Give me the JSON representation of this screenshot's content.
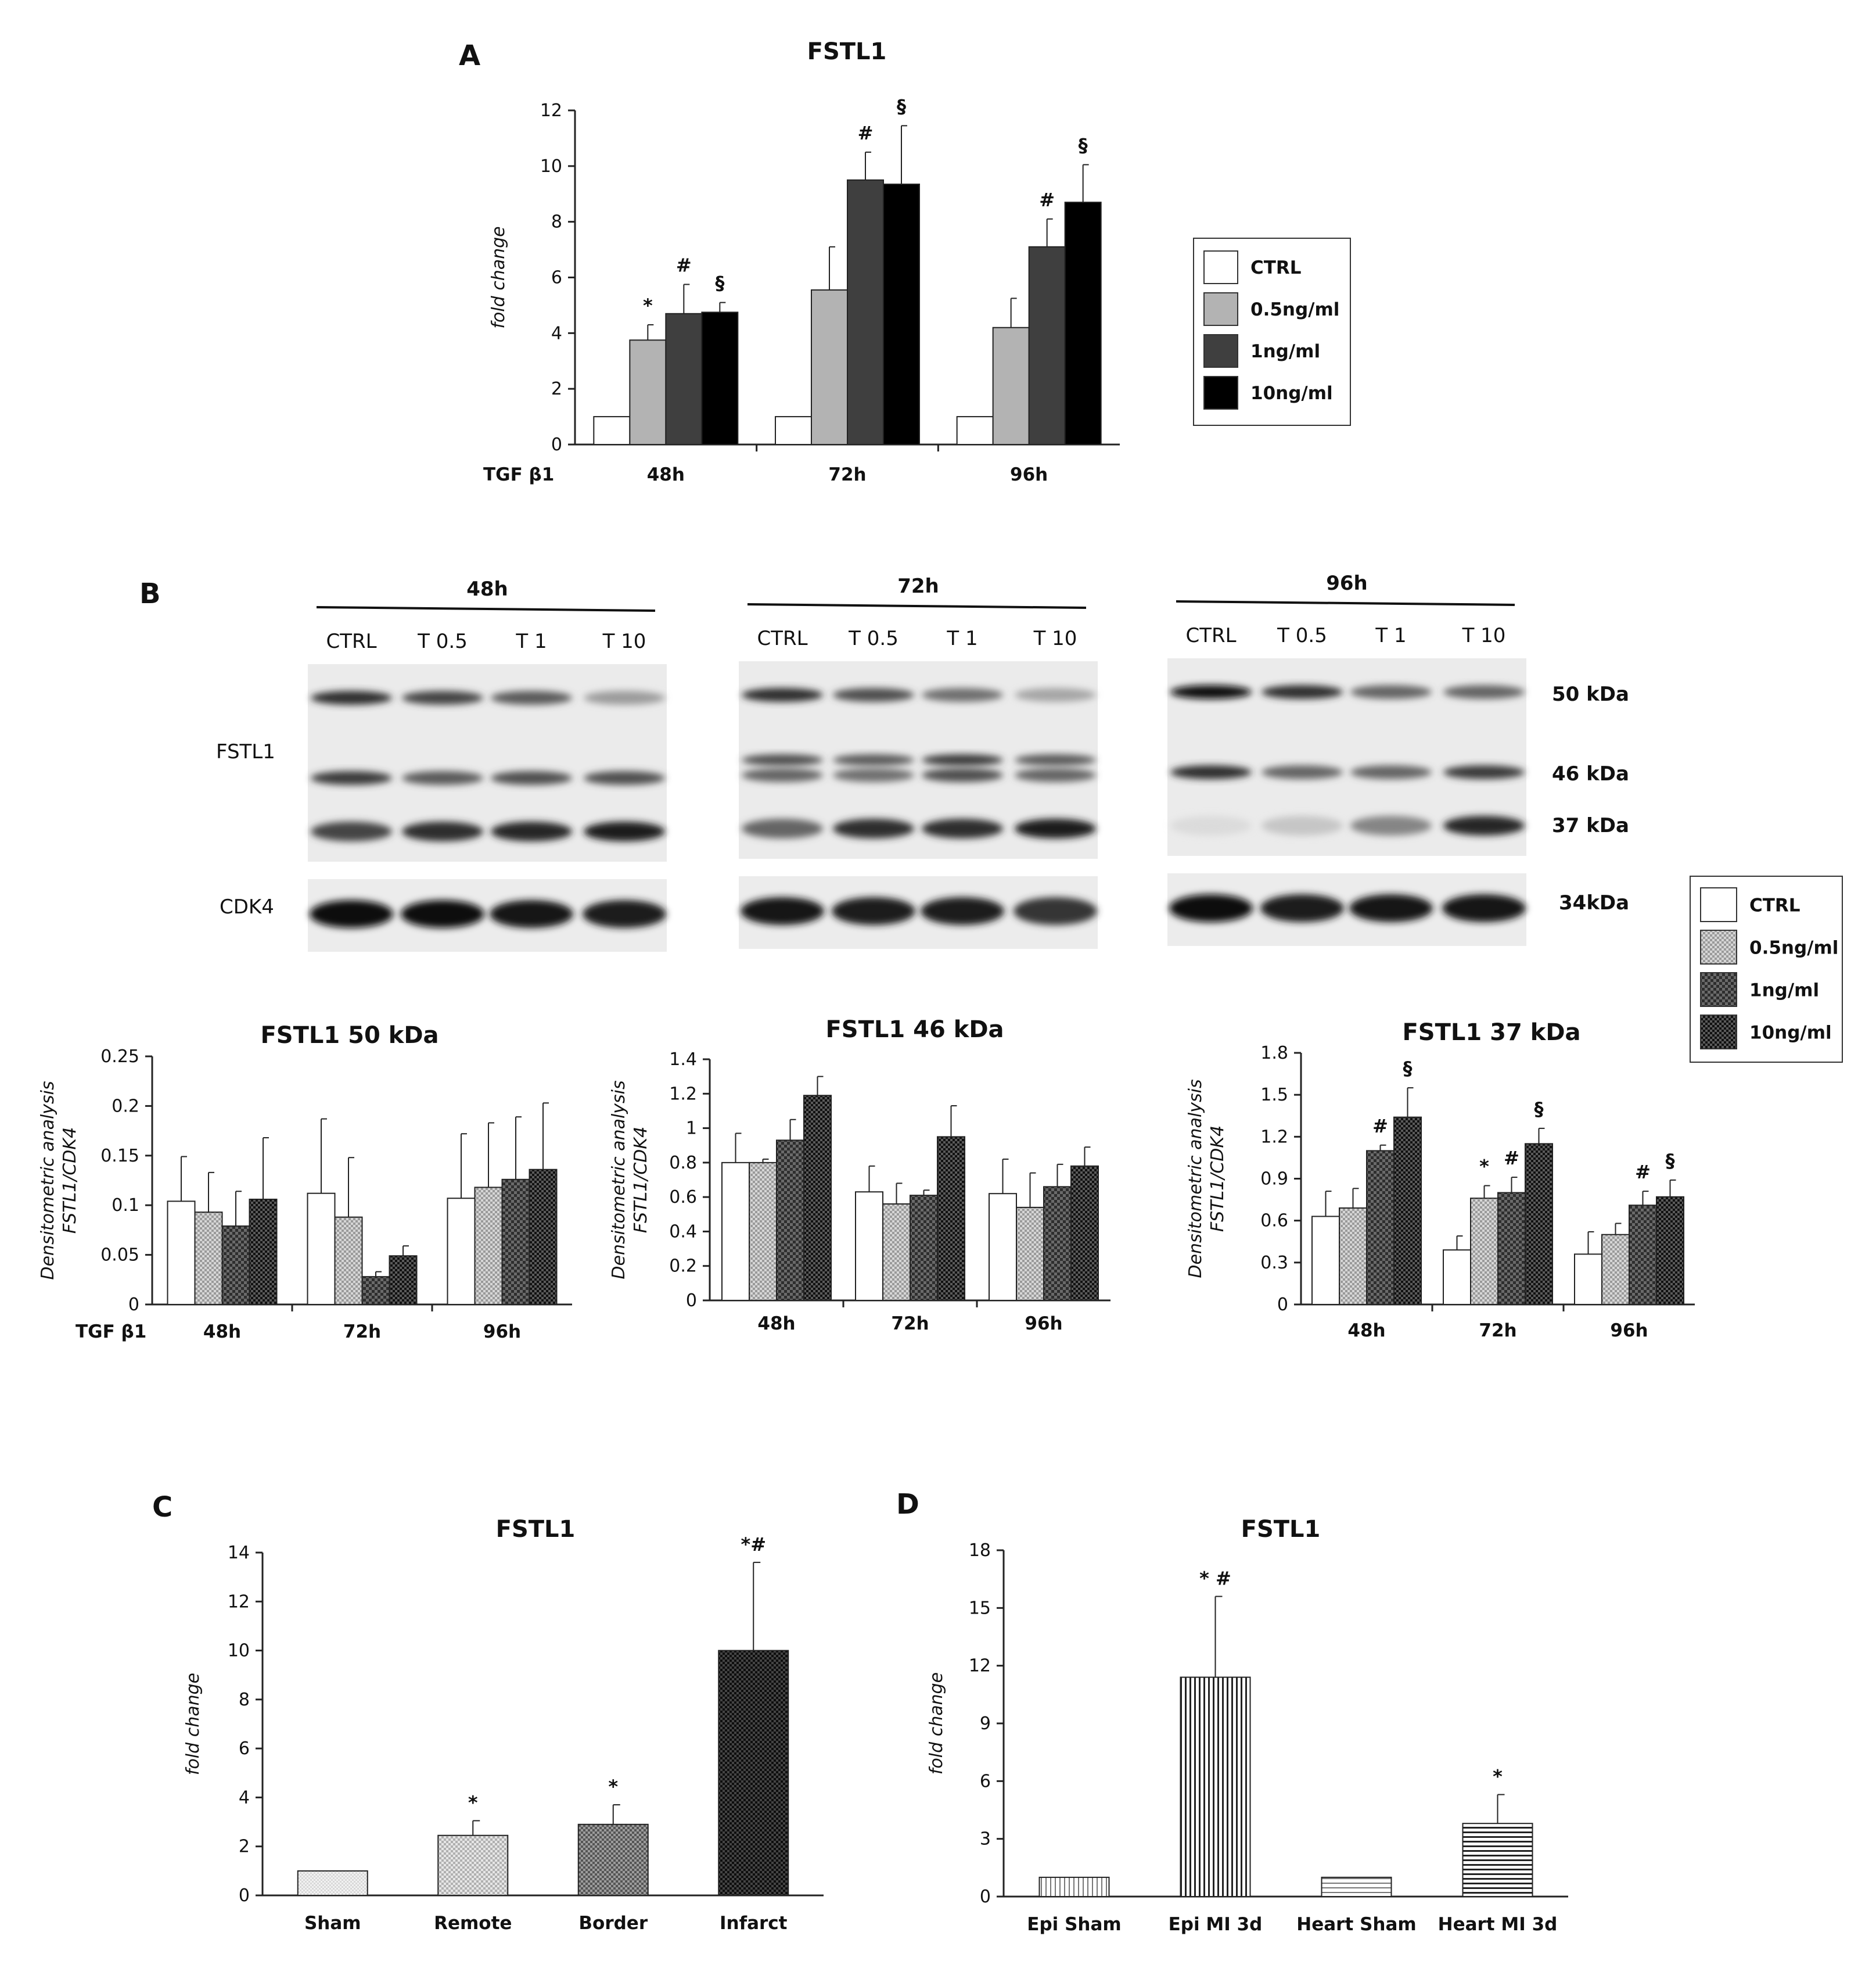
{
  "colors": {
    "ctrl": "#ffffff",
    "t05": "#b3b3b3",
    "t1": "#3f3f3f",
    "t10": "#000000",
    "bar_stroke": "#222222",
    "axis": "#222222"
  },
  "panel_letters": {
    "A": "A",
    "B": "B",
    "C": "C",
    "D": "D"
  },
  "legend_A": [
    "CTRL",
    "0.5ng/ml",
    "1ng/ml",
    "10ng/ml"
  ],
  "legend_B": [
    "CTRL",
    "0.5ng/ml",
    "1ng/ml",
    "10ng/ml"
  ],
  "tgf_label": "TGF β1",
  "blots": {
    "groups": [
      {
        "time": "48h",
        "lanes": [
          "CTRL",
          "T 0.5",
          "T 1",
          "T 10"
        ]
      },
      {
        "time": "72h",
        "lanes": [
          "CTRL",
          "T 0.5",
          "T 1",
          "T 10"
        ]
      },
      {
        "time": "96h",
        "lanes": [
          "CTRL",
          "T 0.5",
          "T 1",
          "T 10"
        ]
      }
    ],
    "row_labels": {
      "fstl1": "FSTL1",
      "cdk4": "CDK4"
    },
    "kda": {
      "k50": "50 kDa",
      "k46": "46 kDa",
      "k37": "37 kDa",
      "k34": "34kDa"
    }
  },
  "chart_data": [
    {
      "id": "A",
      "type": "bar",
      "title": "FSTL1",
      "ylabel": "fold change",
      "xlabel": "TGF β1",
      "categories": [
        "48h",
        "72h",
        "96h"
      ],
      "ylim": [
        0,
        12
      ],
      "yticks": [
        0,
        2,
        4,
        6,
        8,
        10,
        12
      ],
      "series": [
        {
          "name": "CTRL",
          "values": [
            1,
            1,
            1
          ],
          "errors": [
            0,
            0,
            0
          ],
          "sig": [
            "",
            "",
            ""
          ]
        },
        {
          "name": "0.5ng/ml",
          "values": [
            3.75,
            5.55,
            4.2
          ],
          "errors": [
            0.55,
            1.55,
            1.05
          ],
          "sig": [
            "*",
            "",
            ""
          ]
        },
        {
          "name": "1ng/ml",
          "values": [
            4.7,
            9.5,
            7.1
          ],
          "errors": [
            1.05,
            1.0,
            1.0
          ],
          "sig": [
            "#",
            "#",
            "#"
          ]
        },
        {
          "name": "10ng/ml",
          "values": [
            4.75,
            9.35,
            8.7
          ],
          "errors": [
            0.35,
            2.1,
            1.35
          ],
          "sig": [
            "§",
            "§",
            "§"
          ]
        }
      ],
      "legend": "right"
    },
    {
      "id": "B1",
      "type": "bar",
      "title": "FSTL1 50 kDa",
      "ylabel": "Densitometric analysis FSTL1/CDK4",
      "xlabel": "TGF β1",
      "categories": [
        "48h",
        "72h",
        "96h"
      ],
      "ylim": [
        0,
        0.25
      ],
      "yticks": [
        0,
        0.05,
        0.1,
        0.15,
        0.2,
        0.25
      ],
      "series": [
        {
          "name": "CTRL",
          "values": [
            0.104,
            0.112,
            0.107
          ],
          "errors": [
            0.045,
            0.075,
            0.065
          ],
          "sig": [
            "",
            "",
            ""
          ]
        },
        {
          "name": "0.5ng/ml",
          "values": [
            0.093,
            0.088,
            0.118
          ],
          "errors": [
            0.04,
            0.06,
            0.065
          ],
          "sig": [
            "",
            "",
            ""
          ]
        },
        {
          "name": "1ng/ml",
          "values": [
            0.079,
            0.028,
            0.126
          ],
          "errors": [
            0.035,
            0.005,
            0.063
          ],
          "sig": [
            "",
            "",
            ""
          ]
        },
        {
          "name": "10ng/ml",
          "values": [
            0.106,
            0.049,
            0.136
          ],
          "errors": [
            0.062,
            0.01,
            0.067
          ],
          "sig": [
            "",
            "",
            ""
          ]
        }
      ]
    },
    {
      "id": "B2",
      "type": "bar",
      "title": "FSTL1 46 kDa",
      "ylabel": "Densitometric analysis FSTL1/CDK4",
      "categories": [
        "48h",
        "72h",
        "96h"
      ],
      "ylim": [
        0,
        1.4
      ],
      "yticks": [
        0,
        0.2,
        0.4,
        0.6,
        0.8,
        1,
        1.2,
        1.4
      ],
      "series": [
        {
          "name": "CTRL",
          "values": [
            0.8,
            0.63,
            0.62
          ],
          "errors": [
            0.17,
            0.15,
            0.2
          ],
          "sig": [
            "",
            "",
            ""
          ]
        },
        {
          "name": "0.5ng/ml",
          "values": [
            0.8,
            0.56,
            0.54
          ],
          "errors": [
            0.02,
            0.12,
            0.2
          ],
          "sig": [
            "",
            "",
            ""
          ]
        },
        {
          "name": "1ng/ml",
          "values": [
            0.93,
            0.61,
            0.66
          ],
          "errors": [
            0.12,
            0.03,
            0.13
          ],
          "sig": [
            "",
            "",
            ""
          ]
        },
        {
          "name": "10ng/ml",
          "values": [
            1.19,
            0.95,
            0.78
          ],
          "errors": [
            0.11,
            0.18,
            0.11
          ],
          "sig": [
            "",
            "",
            ""
          ]
        }
      ]
    },
    {
      "id": "B3",
      "type": "bar",
      "title": "FSTL1 37 kDa",
      "ylabel": "Densitometric analysis FSTL1/CDK4",
      "categories": [
        "48h",
        "72h",
        "96h"
      ],
      "ylim": [
        0,
        1.8
      ],
      "yticks": [
        0,
        0.3,
        0.6,
        0.9,
        1.2,
        1.5,
        1.8
      ],
      "series": [
        {
          "name": "CTRL",
          "values": [
            0.63,
            0.39,
            0.36
          ],
          "errors": [
            0.18,
            0.1,
            0.16
          ],
          "sig": [
            "",
            "",
            ""
          ]
        },
        {
          "name": "0.5ng/ml",
          "values": [
            0.69,
            0.76,
            0.5
          ],
          "errors": [
            0.14,
            0.09,
            0.08
          ],
          "sig": [
            "",
            "*",
            ""
          ]
        },
        {
          "name": "1ng/ml",
          "values": [
            1.1,
            0.8,
            0.71
          ],
          "errors": [
            0.04,
            0.11,
            0.1
          ],
          "sig": [
            "#",
            "#",
            "#"
          ]
        },
        {
          "name": "10ng/ml",
          "values": [
            1.34,
            1.15,
            0.77
          ],
          "errors": [
            0.21,
            0.11,
            0.12
          ],
          "sig": [
            "§",
            "§",
            "§"
          ]
        }
      ]
    },
    {
      "id": "C",
      "type": "bar",
      "title": "FSTL1",
      "ylabel": "fold change",
      "categories": [
        "Sham",
        "Remote",
        "Border",
        "Infarct"
      ],
      "ylim": [
        0,
        14
      ],
      "yticks": [
        0,
        2,
        4,
        6,
        8,
        10,
        12,
        14
      ],
      "values": [
        1.0,
        2.45,
        2.9,
        10.0
      ],
      "errors": [
        0,
        0.6,
        0.8,
        3.6
      ],
      "sig": [
        "",
        "*",
        "*",
        "*#"
      ]
    },
    {
      "id": "D",
      "type": "bar",
      "title": "FSTL1",
      "ylabel": "fold change",
      "categories": [
        "Epi Sham",
        "Epi MI 3d",
        "Heart Sham",
        "Heart MI 3d"
      ],
      "ylim": [
        0,
        18
      ],
      "yticks": [
        0,
        3,
        6,
        9,
        12,
        15,
        18
      ],
      "values": [
        1.0,
        11.4,
        1.0,
        3.8
      ],
      "errors": [
        0,
        4.2,
        0,
        1.5
      ],
      "sig": [
        "",
        "* #",
        "",
        "*"
      ]
    }
  ]
}
